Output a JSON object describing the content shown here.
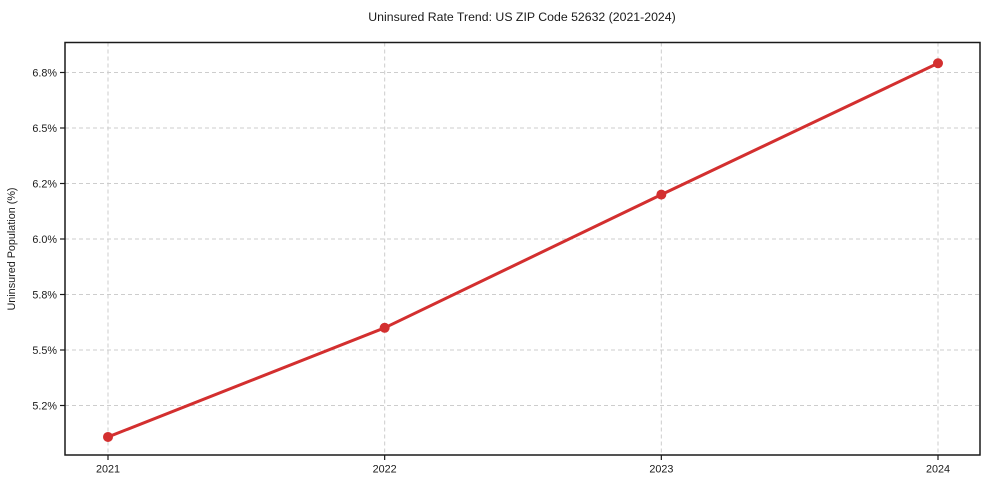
{
  "chart_data": {
    "type": "line",
    "title": "Uninsured Rate Trend: US ZIP Code 52632 (2021-2024)",
    "xlabel": "",
    "ylabel": "Uninsured Population (%)",
    "x": [
      2021,
      2022,
      2023,
      2024
    ],
    "values": [
      5.03,
      5.62,
      6.16,
      6.85
    ],
    "x_tick_labels": [
      "2021",
      "2022",
      "2023",
      "2024"
    ],
    "y_ticks": [
      {
        "label": "6.8%",
        "value": 6.8
      },
      {
        "label": "6.5%",
        "value": 6.5
      },
      {
        "label": "6.2%",
        "value": 6.2
      },
      {
        "label": "6.0%",
        "value": 6.0
      },
      {
        "label": "5.8%",
        "value": 5.8
      },
      {
        "label": "5.5%",
        "value": 5.5
      },
      {
        "label": "5.2%",
        "value": 5.2
      }
    ],
    "y_tick_spacing": "uniform",
    "line_color": "#d32f2f",
    "marker": "circle",
    "marker_color": "#d32f2f",
    "grid": true,
    "grid_style": "dashed",
    "grid_color": "#cdcdcd",
    "legend": false
  }
}
